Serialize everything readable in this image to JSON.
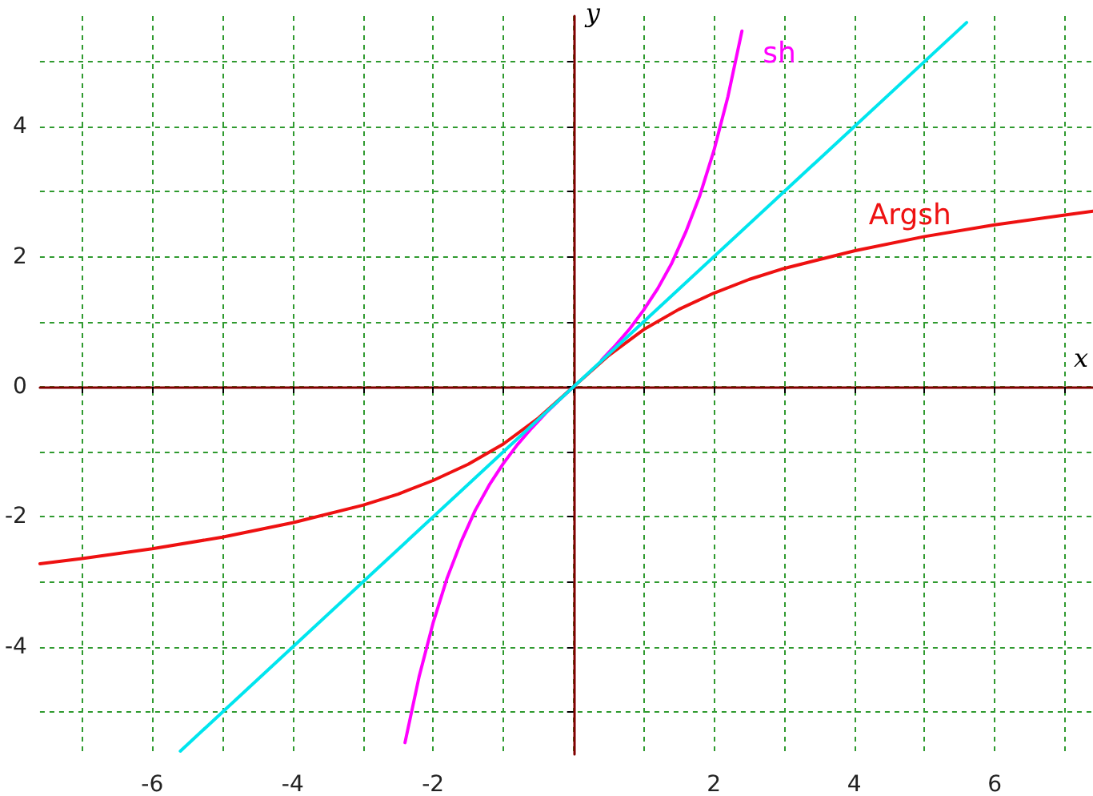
{
  "chart_data": {
    "type": "line",
    "xlabel": "x",
    "ylabel": "y",
    "xlim": [
      -7.6,
      7.4
    ],
    "ylim": [
      -5.65,
      5.7
    ],
    "xticks": [
      {
        "value": -7,
        "label": null
      },
      -6,
      {
        "value": -5,
        "label": null
      },
      -4,
      {
        "value": -3,
        "label": null
      },
      -2,
      {
        "value": -1,
        "label": null
      },
      {
        "value": 0,
        "label": null
      },
      {
        "value": 1,
        "label": null
      },
      2,
      {
        "value": 3,
        "label": null
      },
      4,
      {
        "value": 5,
        "label": null
      },
      6,
      {
        "value": 7,
        "label": null
      }
    ],
    "yticks": [
      {
        "value": -5,
        "label": null
      },
      -4,
      {
        "value": -3,
        "label": null
      },
      -2,
      {
        "value": -1,
        "label": null
      },
      0,
      {
        "value": 1,
        "label": null
      },
      2,
      {
        "value": 3,
        "label": null
      },
      4,
      {
        "value": 5,
        "label": null
      }
    ],
    "grid": true,
    "legend": false,
    "marker": "none",
    "line_style": "solid",
    "series": [
      {
        "name": "sh",
        "color": "#ff00ff",
        "x": [
          -2.4,
          -2.2,
          -2.0,
          -1.8,
          -1.6,
          -1.4,
          -1.2,
          -1.0,
          -0.8,
          -0.6,
          -0.4,
          -0.2,
          0,
          0.2,
          0.4,
          0.6,
          0.8,
          1.0,
          1.2,
          1.4,
          1.6,
          1.8,
          2.0,
          2.2,
          2.4
        ],
        "values": [
          -5.47,
          -4.46,
          -3.63,
          -2.94,
          -2.38,
          -1.9,
          -1.51,
          -1.18,
          -0.89,
          -0.64,
          -0.41,
          -0.2,
          0,
          null,
          0.41,
          0.64,
          0.89,
          1.18,
          1.51,
          1.9,
          2.38,
          2.94,
          3.63,
          4.46,
          5.47
        ]
      },
      {
        "name": "Argsh",
        "color": "#ee1111",
        "x": [
          -7.6,
          -7,
          -6,
          -5,
          -4,
          -3,
          -2.5,
          -2,
          -1.5,
          -1,
          -0.5,
          0,
          0.5,
          1,
          1.5,
          2,
          2.5,
          3,
          4,
          5,
          6,
          7,
          7.4
        ],
        "values": [
          -2.72,
          -2.64,
          -2.49,
          -2.31,
          -2.09,
          -1.82,
          -1.65,
          -1.44,
          -1.19,
          -0.88,
          -0.48,
          0,
          0.48,
          0.88,
          1.19,
          1.44,
          1.65,
          1.82,
          2.09,
          2.31,
          2.49,
          2.64,
          2.7
        ]
      },
      {
        "color": "#00e5ee",
        "x": [
          -5.6,
          5.6
        ],
        "values": [
          -5.6,
          5.6
        ]
      }
    ]
  }
}
